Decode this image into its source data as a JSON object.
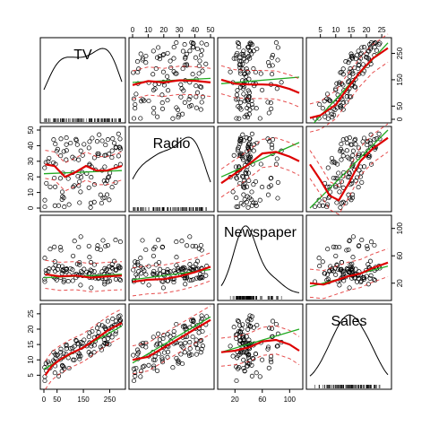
{
  "chart_data": {
    "type": "scatter",
    "title": "",
    "variables": [
      "TV",
      "Radio",
      "Newspaper",
      "Sales"
    ],
    "ranges": {
      "TV": [
        0,
        296
      ],
      "Radio": [
        0,
        50
      ],
      "Newspaper": [
        0,
        114
      ],
      "Sales": [
        1.6,
        27
      ]
    },
    "axis_ticks": {
      "TV": [
        0,
        50,
        150,
        250
      ],
      "Radio": [
        0,
        10,
        20,
        30,
        40,
        50
      ],
      "Newspaper": [
        20,
        60,
        100
      ],
      "Sales": [
        5,
        10,
        15,
        20,
        25
      ]
    },
    "tick_labels": {
      "TV": [
        "0",
        "50",
        "150",
        "250"
      ],
      "Radio": [
        "0",
        "10",
        "20",
        "30",
        "40",
        "50"
      ],
      "Newspaper": [
        "20",
        "60",
        "100"
      ],
      "Sales": [
        "5",
        "10",
        "15",
        "20",
        "25"
      ]
    },
    "smoothers": {
      "TV|Radio": [
        [
          5,
          28
        ],
        [
          40,
          27
        ],
        [
          80,
          20
        ],
        [
          120,
          23
        ],
        [
          160,
          27
        ],
        [
          200,
          24
        ],
        [
          240,
          24
        ],
        [
          296,
          27
        ]
      ],
      "TV|Newspaper": [
        [
          5,
          33
        ],
        [
          60,
          30
        ],
        [
          120,
          31
        ],
        [
          180,
          28
        ],
        [
          240,
          30
        ],
        [
          296,
          31
        ]
      ],
      "TV|Sales": [
        [
          5,
          5
        ],
        [
          30,
          8
        ],
        [
          60,
          10
        ],
        [
          100,
          12
        ],
        [
          150,
          14
        ],
        [
          200,
          17
        ],
        [
          250,
          20
        ],
        [
          296,
          22
        ]
      ],
      "Radio|TV": [
        [
          0,
          130
        ],
        [
          10,
          145
        ],
        [
          20,
          140
        ],
        [
          30,
          148
        ],
        [
          40,
          146
        ],
        [
          50,
          140
        ]
      ],
      "Radio|Newspaper": [
        [
          0,
          22
        ],
        [
          10,
          25
        ],
        [
          20,
          26
        ],
        [
          30,
          30
        ],
        [
          40,
          36
        ],
        [
          50,
          44
        ]
      ],
      "Radio|Sales": [
        [
          0,
          10
        ],
        [
          10,
          11
        ],
        [
          20,
          14
        ],
        [
          30,
          17
        ],
        [
          40,
          20
        ],
        [
          50,
          23
        ]
      ],
      "Newspaper|TV": [
        [
          0,
          150
        ],
        [
          20,
          135
        ],
        [
          40,
          132
        ],
        [
          60,
          132
        ],
        [
          80,
          130
        ],
        [
          100,
          115
        ],
        [
          114,
          100
        ]
      ],
      "Newspaper|Radio": [
        [
          0,
          16
        ],
        [
          20,
          22
        ],
        [
          40,
          28
        ],
        [
          60,
          35
        ],
        [
          80,
          36
        ],
        [
          100,
          33
        ],
        [
          114,
          30
        ]
      ],
      "Newspaper|Sales": [
        [
          0,
          12.5
        ],
        [
          20,
          13
        ],
        [
          40,
          14
        ],
        [
          60,
          16
        ],
        [
          80,
          16.5
        ],
        [
          100,
          15
        ],
        [
          114,
          13
        ]
      ],
      "Sales|TV": [
        [
          1.6,
          5
        ],
        [
          5,
          15
        ],
        [
          10,
          55
        ],
        [
          14,
          120
        ],
        [
          18,
          180
        ],
        [
          22,
          230
        ],
        [
          27,
          270
        ]
      ],
      "Sales|Radio": [
        [
          1.6,
          28
        ],
        [
          5,
          18
        ],
        [
          8,
          8
        ],
        [
          11,
          5
        ],
        [
          14,
          15
        ],
        [
          18,
          30
        ],
        [
          22,
          38
        ],
        [
          27,
          45
        ]
      ],
      "Sales|Newspaper": [
        [
          1.6,
          20
        ],
        [
          6,
          18
        ],
        [
          10,
          24
        ],
        [
          14,
          30
        ],
        [
          18,
          34
        ],
        [
          22,
          42
        ],
        [
          27,
          50
        ]
      ]
    },
    "fits": {
      "TV|Radio": [
        [
          0,
          22
        ],
        [
          296,
          24
        ]
      ],
      "TV|Newspaper": [
        [
          0,
          28
        ],
        [
          296,
          33
        ]
      ],
      "TV|Sales": [
        [
          0,
          7
        ],
        [
          296,
          21
        ]
      ],
      "Radio|TV": [
        [
          0,
          140
        ],
        [
          50,
          155
        ]
      ],
      "Radio|Newspaper": [
        [
          0,
          25
        ],
        [
          50,
          40
        ]
      ],
      "Radio|Sales": [
        [
          0,
          9
        ],
        [
          50,
          24
        ]
      ],
      "Newspaper|TV": [
        [
          0,
          135
        ],
        [
          114,
          160
        ]
      ],
      "Newspaper|Radio": [
        [
          0,
          20
        ],
        [
          114,
          42
        ]
      ],
      "Newspaper|Sales": [
        [
          0,
          12.5
        ],
        [
          114,
          20
        ]
      ],
      "Sales|TV": [
        [
          1.6,
          -30
        ],
        [
          27,
          290
        ]
      ],
      "Sales|Radio": [
        [
          1.6,
          0
        ],
        [
          27,
          50
        ]
      ],
      "Sales|Newspaper": [
        [
          1.6,
          15
        ],
        [
          27,
          45
        ]
      ]
    },
    "grid": false,
    "legend": "none"
  }
}
